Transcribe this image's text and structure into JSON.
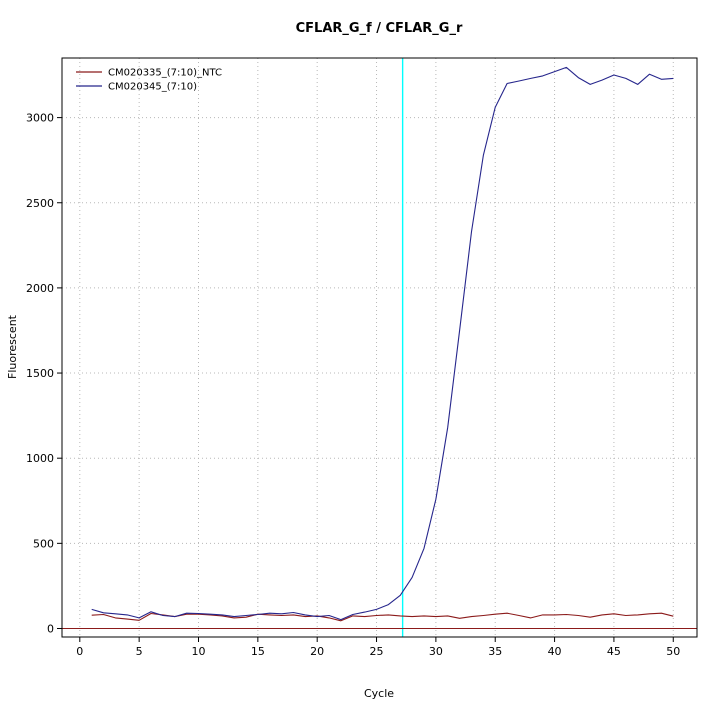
{
  "figure": {
    "kind": "qpcr-amplification-plot"
  },
  "chart_data": {
    "type": "line",
    "title": "CFLAR_G_f / CFLAR_G_r",
    "xlabel": "Cycle",
    "ylabel": "Fluorescent",
    "xlim": [
      -1.5,
      52
    ],
    "ylim": [
      -50,
      3350
    ],
    "x_ticks": [
      0,
      5,
      10,
      15,
      20,
      25,
      30,
      35,
      40,
      45,
      50
    ],
    "y_ticks": [
      0,
      500,
      1000,
      1500,
      2000,
      2500,
      3000
    ],
    "grid": true,
    "grid_color": "#b8b8b8",
    "legend_position": "top-left",
    "threshold_cycle_line": {
      "orientation": "vertical",
      "x": 27.2,
      "color": "#00ffff"
    },
    "baseline": {
      "orientation": "horizontal",
      "y": 0,
      "color": "#8b1a1a"
    },
    "x": [
      1,
      2,
      3,
      4,
      5,
      6,
      7,
      8,
      9,
      10,
      11,
      12,
      13,
      14,
      15,
      16,
      17,
      18,
      19,
      20,
      21,
      22,
      23,
      24,
      25,
      26,
      27,
      28,
      29,
      30,
      31,
      32,
      33,
      34,
      35,
      36,
      37,
      38,
      39,
      40,
      41,
      42,
      43,
      44,
      45,
      46,
      47,
      48,
      49,
      50
    ],
    "series": [
      {
        "name": "CM020335_(7:10)_NTC",
        "color": "#8b1a1a",
        "values": [
          78,
          82,
          62,
          55,
          48,
          88,
          80,
          70,
          84,
          84,
          80,
          74,
          62,
          66,
          84,
          80,
          76,
          80,
          70,
          74,
          62,
          45,
          74,
          70,
          76,
          80,
          74,
          70,
          74,
          70,
          74,
          60,
          70,
          76,
          84,
          90,
          76,
          62,
          80,
          80,
          82,
          76,
          66,
          80,
          86,
          76,
          80,
          86,
          90,
          72
        ]
      },
      {
        "name": "CM020345_(7:10)",
        "color": "#26268c",
        "values": [
          112,
          92,
          86,
          80,
          62,
          98,
          76,
          70,
          90,
          88,
          84,
          80,
          70,
          76,
          82,
          90,
          86,
          94,
          80,
          70,
          76,
          52,
          82,
          96,
          112,
          140,
          195,
          300,
          470,
          760,
          1180,
          1750,
          2330,
          2780,
          3060,
          3200,
          3215,
          3230,
          3245,
          3270,
          3295,
          3235,
          3195,
          3220,
          3250,
          3230,
          3195,
          3255,
          3225,
          3230
        ]
      }
    ]
  }
}
